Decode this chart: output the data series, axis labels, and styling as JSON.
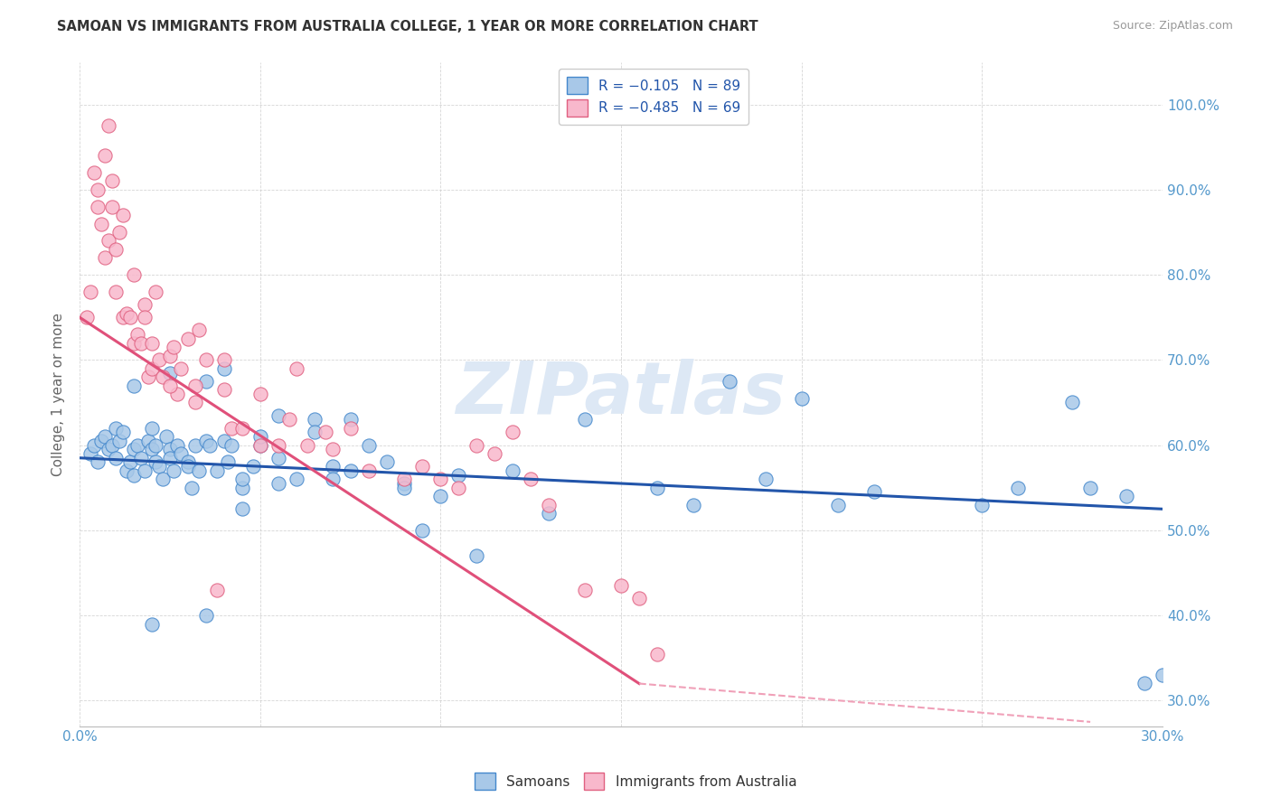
{
  "title": "SAMOAN VS IMMIGRANTS FROM AUSTRALIA COLLEGE, 1 YEAR OR MORE CORRELATION CHART",
  "source": "Source: ZipAtlas.com",
  "ylabel": "College, 1 year or more",
  "xtick_values": [
    0.0,
    5.0,
    10.0,
    15.0,
    20.0,
    25.0,
    30.0
  ],
  "xtick_labels_show": [
    "0.0%",
    "",
    "",
    "",
    "",
    "",
    "30.0%"
  ],
  "ytick_values": [
    30.0,
    40.0,
    50.0,
    60.0,
    70.0,
    80.0,
    90.0,
    100.0
  ],
  "ytick_labels": [
    "30.0%",
    "40.0%",
    "50.0%",
    "60.0%",
    "70.0%",
    "80.0%",
    "90.0%",
    "100.0%"
  ],
  "xlim": [
    0.0,
    30.0
  ],
  "ylim": [
    27.0,
    105.0
  ],
  "blue_color": "#a8c8e8",
  "pink_color": "#f8b8cc",
  "blue_edge_color": "#4488cc",
  "pink_edge_color": "#e06080",
  "blue_line_color": "#2255aa",
  "pink_line_color": "#e0507a",
  "pink_dash_color": "#f0a0b8",
  "watermark_text": "ZIPatlas",
  "watermark_color": "#dde8f5",
  "background_color": "#ffffff",
  "grid_color": "#cccccc",
  "title_color": "#333333",
  "axis_label_color": "#666666",
  "tick_color": "#5599cc",
  "legend_top": [
    {
      "label": "R = −0.105   N = 89",
      "face": "#a8c8e8",
      "edge": "#4488cc"
    },
    {
      "label": "R = −0.485   N = 69",
      "face": "#f8b8cc",
      "edge": "#e06080"
    }
  ],
  "legend_bottom": [
    {
      "label": "Samoans",
      "face": "#a8c8e8",
      "edge": "#4488cc"
    },
    {
      "label": "Immigrants from Australia",
      "face": "#f8b8cc",
      "edge": "#e06080"
    }
  ],
  "blue_line_x0": 0.0,
  "blue_line_y0": 58.5,
  "blue_line_x1": 30.0,
  "blue_line_y1": 52.5,
  "pink_line_x0": 0.0,
  "pink_line_y0": 75.0,
  "pink_line_x1_solid": 15.5,
  "pink_line_y1_solid": 32.0,
  "pink_line_x1_dash": 28.0,
  "pink_line_y1_dash": 27.5,
  "samoans_x": [
    0.3,
    0.4,
    0.5,
    0.6,
    0.7,
    0.8,
    0.9,
    1.0,
    1.0,
    1.1,
    1.2,
    1.3,
    1.4,
    1.5,
    1.5,
    1.6,
    1.7,
    1.8,
    1.9,
    2.0,
    2.0,
    2.1,
    2.1,
    2.2,
    2.3,
    2.4,
    2.5,
    2.5,
    2.6,
    2.7,
    2.8,
    3.0,
    3.0,
    3.1,
    3.2,
    3.3,
    3.5,
    3.6,
    3.8,
    4.0,
    4.1,
    4.2,
    4.5,
    4.8,
    5.0,
    5.5,
    6.0,
    6.5,
    7.0,
    7.0,
    7.5,
    8.0,
    8.5,
    9.0,
    9.5,
    10.0,
    11.0,
    12.0,
    13.0,
    14.0,
    16.0,
    17.0,
    18.0,
    19.0,
    20.0,
    21.0,
    22.0,
    25.0,
    26.0,
    27.5,
    28.0,
    29.0,
    29.5,
    30.0,
    2.0,
    3.5,
    4.5,
    5.5,
    6.5,
    7.5,
    9.0,
    10.5,
    1.5,
    2.5,
    3.5,
    4.0,
    4.5,
    5.0,
    5.5
  ],
  "samoans_y": [
    59.0,
    60.0,
    58.0,
    60.5,
    61.0,
    59.5,
    60.0,
    58.5,
    62.0,
    60.5,
    61.5,
    57.0,
    58.0,
    59.5,
    56.5,
    60.0,
    58.5,
    57.0,
    60.5,
    62.0,
    59.5,
    58.0,
    60.0,
    57.5,
    56.0,
    61.0,
    59.5,
    58.5,
    57.0,
    60.0,
    59.0,
    58.0,
    57.5,
    55.0,
    60.0,
    57.0,
    60.5,
    60.0,
    57.0,
    60.5,
    58.0,
    60.0,
    55.0,
    57.5,
    60.0,
    63.5,
    56.0,
    63.0,
    57.5,
    56.0,
    63.0,
    60.0,
    58.0,
    55.5,
    50.0,
    54.0,
    47.0,
    57.0,
    52.0,
    63.0,
    55.0,
    53.0,
    67.5,
    56.0,
    65.5,
    53.0,
    54.5,
    53.0,
    55.0,
    65.0,
    55.0,
    54.0,
    32.0,
    33.0,
    39.0,
    40.0,
    56.0,
    55.5,
    61.5,
    57.0,
    55.0,
    56.5,
    67.0,
    68.5,
    67.5,
    69.0,
    52.5,
    61.0,
    58.5
  ],
  "australia_x": [
    0.2,
    0.3,
    0.4,
    0.5,
    0.5,
    0.6,
    0.7,
    0.7,
    0.8,
    0.8,
    0.9,
    0.9,
    1.0,
    1.0,
    1.1,
    1.2,
    1.2,
    1.3,
    1.4,
    1.5,
    1.5,
    1.6,
    1.7,
    1.8,
    1.8,
    1.9,
    2.0,
    2.0,
    2.1,
    2.2,
    2.3,
    2.5,
    2.6,
    2.7,
    2.8,
    3.0,
    3.2,
    3.3,
    3.5,
    3.8,
    4.0,
    4.0,
    4.2,
    4.5,
    5.0,
    5.0,
    5.5,
    5.8,
    6.0,
    6.3,
    6.8,
    7.0,
    7.5,
    8.0,
    9.0,
    9.5,
    10.0,
    10.5,
    11.0,
    11.5,
    12.0,
    12.5,
    13.0,
    14.0,
    15.0,
    15.5,
    16.0,
    2.5,
    3.2
  ],
  "australia_y": [
    75.0,
    78.0,
    92.0,
    90.0,
    88.0,
    86.0,
    94.0,
    82.0,
    84.0,
    97.5,
    88.0,
    91.0,
    83.0,
    78.0,
    85.0,
    87.0,
    75.0,
    75.5,
    75.0,
    80.0,
    72.0,
    73.0,
    72.0,
    76.5,
    75.0,
    68.0,
    72.0,
    69.0,
    78.0,
    70.0,
    68.0,
    70.5,
    71.5,
    66.0,
    69.0,
    72.5,
    67.0,
    73.5,
    70.0,
    43.0,
    70.0,
    66.5,
    62.0,
    62.0,
    66.0,
    60.0,
    60.0,
    63.0,
    69.0,
    60.0,
    61.5,
    59.5,
    62.0,
    57.0,
    56.0,
    57.5,
    56.0,
    55.0,
    60.0,
    59.0,
    61.5,
    56.0,
    53.0,
    43.0,
    43.5,
    42.0,
    35.5,
    67.0,
    65.0
  ]
}
